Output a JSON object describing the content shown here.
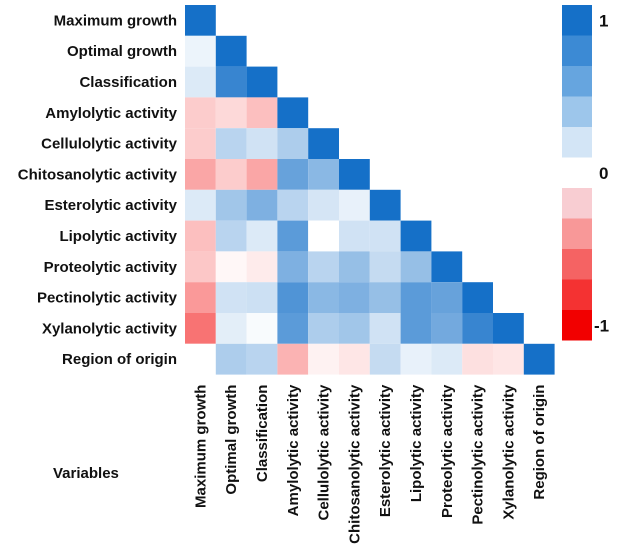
{
  "chart_data": {
    "type": "heatmap",
    "title": "",
    "footer_label": "Variables",
    "variables": [
      "Maximum growth",
      "Optimal growth",
      "Classification",
      "Amylolytic activity",
      "Cellulolytic activity",
      "Chitosanolytic activity",
      "Esterolytic activity",
      "Lipolytic activity",
      "Proteolytic activity",
      "Pectinolytic activity",
      "Xylanolytic activity",
      "Region of origin"
    ],
    "matrix": [
      [
        1.0
      ],
      [
        0.08,
        1.0
      ],
      [
        0.15,
        0.85,
        1.0
      ],
      [
        -0.2,
        -0.15,
        -0.25,
        1.0
      ],
      [
        -0.2,
        0.3,
        0.2,
        0.35,
        1.0
      ],
      [
        -0.35,
        -0.2,
        -0.35,
        0.65,
        0.5,
        1.0
      ],
      [
        0.15,
        0.4,
        0.55,
        0.3,
        0.18,
        0.1,
        1.0
      ],
      [
        -0.25,
        0.3,
        0.15,
        0.7,
        0.0,
        0.2,
        0.2,
        1.0
      ],
      [
        -0.22,
        -0.03,
        -0.08,
        0.55,
        0.3,
        0.45,
        0.25,
        0.45,
        1.0
      ],
      [
        -0.4,
        0.2,
        0.22,
        0.75,
        0.5,
        0.55,
        0.45,
        0.7,
        0.65,
        1.0
      ],
      [
        -0.55,
        0.12,
        0.03,
        0.7,
        0.35,
        0.4,
        0.2,
        0.7,
        0.6,
        0.85,
        1.0
      ],
      [
        0.0,
        0.35,
        0.3,
        -0.3,
        -0.05,
        -0.1,
        0.25,
        0.1,
        0.15,
        -0.12,
        -0.1,
        1.0
      ]
    ],
    "legend": {
      "colors": [
        "#1570c8",
        "#3c8ad4",
        "#66a5df",
        "#9dc6eb",
        "#d3e5f6",
        "#ffffff",
        "#f8cdd2",
        "#f89898",
        "#f56363",
        "#f43232",
        "#f20000"
      ],
      "tick_labels": [
        "1",
        "0",
        "-1"
      ],
      "tick_values": [
        1,
        0,
        -1
      ]
    },
    "colorscale": {
      "positive": "#1570c8",
      "neutral": "#ffffff",
      "negative": "#f20000"
    },
    "value_range": [
      -1,
      1
    ]
  }
}
